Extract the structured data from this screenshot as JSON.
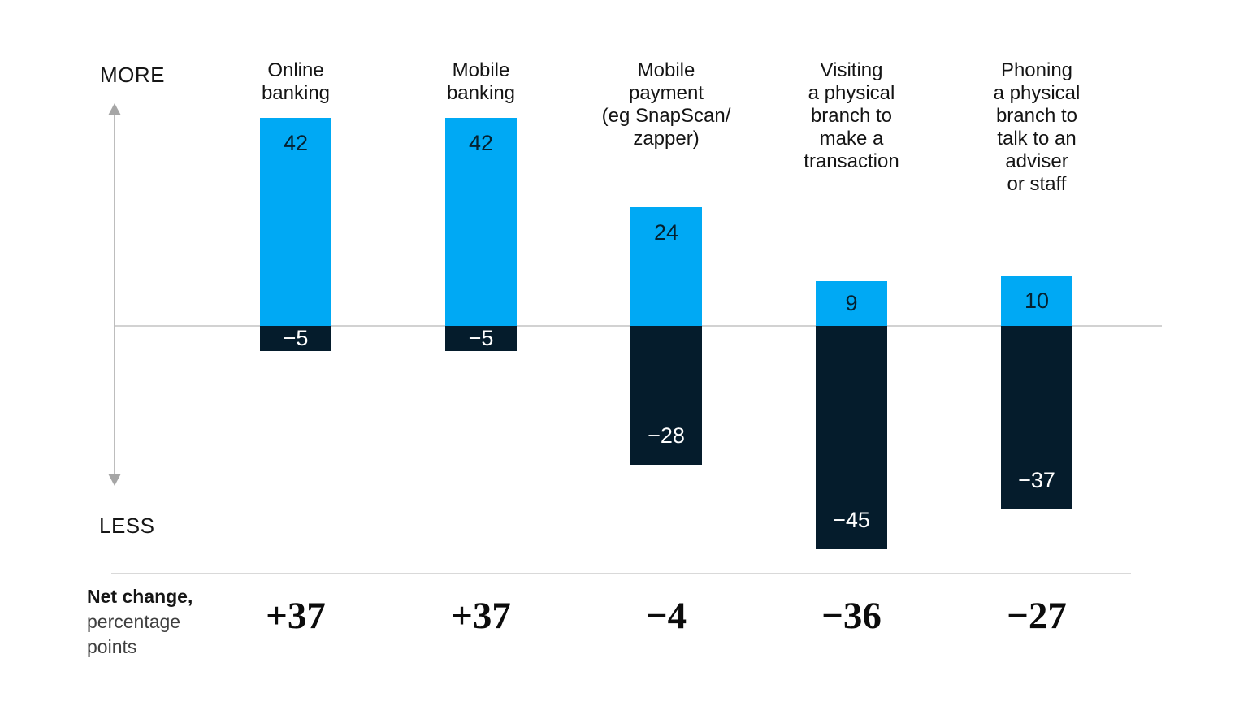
{
  "axis": {
    "more_label": "MORE",
    "less_label": "LESS"
  },
  "footer": {
    "title": "Net change,",
    "subtitle_line1": "percentage",
    "subtitle_line2": "points"
  },
  "colors": {
    "positive_bar": "#00a9f4",
    "negative_bar": "#051c2c",
    "positive_value_text": "#05212f",
    "negative_value_text": "#ffffff",
    "axis_line": "#bdbdbd",
    "zero_line": "#d2d2d2",
    "background": "#ffffff"
  },
  "chart_data": {
    "type": "bar",
    "stacked": true,
    "orientation": "vertical",
    "grid": false,
    "legend": false,
    "ylabel": "Net change, percentage points",
    "axis_annotations": [
      "MORE",
      "LESS"
    ],
    "categories": [
      "Online banking",
      "Mobile banking",
      "Mobile payment (eg SnapScan/ zapper)",
      "Visiting a physical branch to make a transaction",
      "Phoning a physical branch to talk to an adviser or staff"
    ],
    "category_lines": [
      "Online\nbanking",
      "Mobile\nbanking",
      "Mobile\npayment\n(eg SnapScan/\nzapper)",
      "Visiting\na physical\nbranch to\nmake a\ntransaction",
      "Phoning\na physical\nbranch to\ntalk to an\nadviser\nor staff"
    ],
    "series": [
      {
        "name": "More (increase)",
        "values": [
          42,
          42,
          24,
          9,
          10
        ],
        "labels": [
          "42",
          "42",
          "24",
          "9",
          "10"
        ],
        "color": "#00a9f4"
      },
      {
        "name": "Less (decrease)",
        "values": [
          -5,
          -5,
          -28,
          -45,
          -37
        ],
        "labels": [
          "−5",
          "−5",
          "−28",
          "−45",
          "−37"
        ],
        "color": "#051c2c"
      }
    ],
    "net_change": {
      "values": [
        37,
        37,
        -4,
        -36,
        -27
      ],
      "labels": [
        "+37",
        "+37",
        "−4",
        "−36",
        "−27"
      ]
    },
    "ylim": [
      -50,
      45
    ]
  }
}
